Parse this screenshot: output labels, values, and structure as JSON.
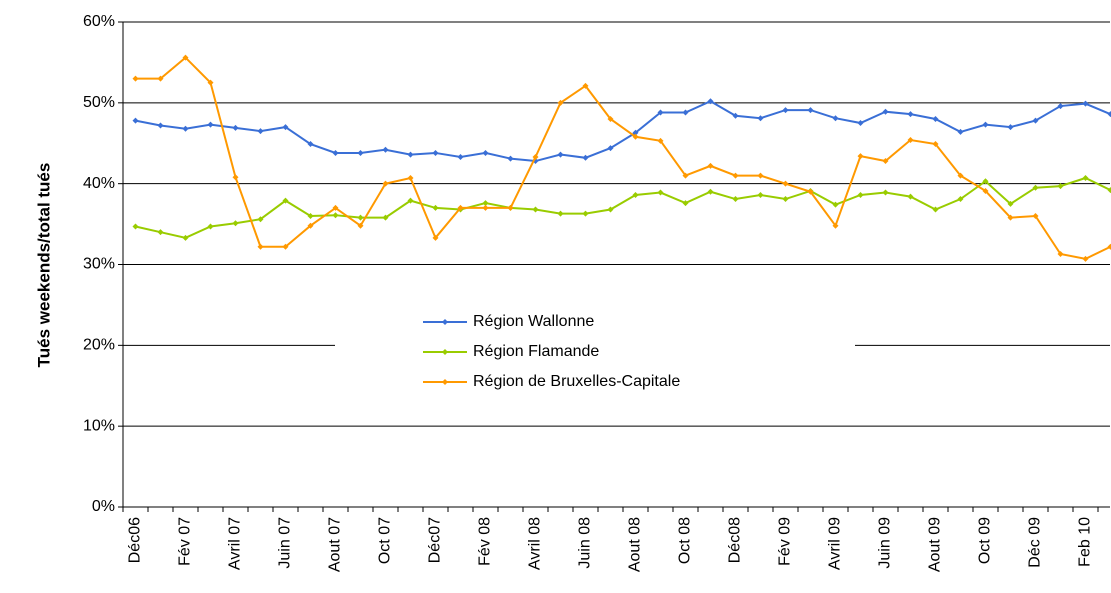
{
  "chart_data": {
    "type": "line",
    "y_label": "Tués weekends/total tués",
    "categories": [
      "Déc06",
      null,
      "Fév 07",
      null,
      "Avril 07",
      null,
      "Juin 07",
      null,
      "Aout 07",
      null,
      "Oct 07",
      null,
      "Déc07",
      null,
      "Fév 08",
      null,
      "Avril 08",
      null,
      "Juin 08",
      null,
      "Aout 08",
      null,
      "Oct 08",
      null,
      "Déc08",
      null,
      "Fév 09",
      null,
      "Avril 09",
      null,
      "Juin 09",
      null,
      "Aout 09",
      null,
      "Oct 09",
      null,
      "Déc 09",
      null,
      "Feb 10",
      null
    ],
    "series": [
      {
        "name": "Région Wallonne",
        "color": "#3a6fd6",
        "values": [
          47.8,
          47.2,
          46.8,
          47.3,
          46.9,
          46.5,
          47.0,
          44.9,
          43.8,
          43.8,
          44.2,
          43.6,
          43.8,
          43.3,
          43.8,
          43.1,
          42.8,
          43.6,
          43.2,
          44.4,
          46.3,
          48.8,
          48.8,
          50.2,
          48.4,
          48.1,
          49.1,
          49.1,
          48.1,
          47.5,
          48.9,
          48.6,
          48.0,
          46.4,
          47.3,
          47.0,
          47.8,
          49.6,
          49.9,
          48.6
        ]
      },
      {
        "name": "Région Flamande",
        "color": "#99cc00",
        "values": [
          34.7,
          34.0,
          33.3,
          34.7,
          35.1,
          35.6,
          37.9,
          36.0,
          36.1,
          35.8,
          35.8,
          37.9,
          37.0,
          36.8,
          37.6,
          37.0,
          36.8,
          36.3,
          36.3,
          36.8,
          38.6,
          38.9,
          37.6,
          39.0,
          38.1,
          38.6,
          38.1,
          39.1,
          37.4,
          38.6,
          38.9,
          38.4,
          36.8,
          38.1,
          40.3,
          37.5,
          39.5,
          39.7,
          40.7,
          39.2
        ]
      },
      {
        "name": "Région de Bruxelles-Capitale",
        "color": "#ff9900",
        "values": [
          53.0,
          53.0,
          55.6,
          52.5,
          40.8,
          32.2,
          32.2,
          34.8,
          37.0,
          34.8,
          40.0,
          40.7,
          33.3,
          37.0,
          37.0,
          37.0,
          43.3,
          50.0,
          52.1,
          48.0,
          45.8,
          45.3,
          41.0,
          42.2,
          41.0,
          41.0,
          40.0,
          39.0,
          34.8,
          43.4,
          42.8,
          45.4,
          44.9,
          41.0,
          39.1,
          35.8,
          36.0,
          31.3,
          30.7,
          32.2
        ]
      }
    ],
    "ylim": [
      0,
      60
    ],
    "yticks": [
      {
        "value": 0,
        "label": "0%"
      },
      {
        "value": 10,
        "label": "10%"
      },
      {
        "value": 20,
        "label": "20%"
      },
      {
        "value": 30,
        "label": "30%"
      },
      {
        "value": 40,
        "label": "40%"
      },
      {
        "value": 50,
        "label": "50%"
      },
      {
        "value": 60,
        "label": "60%"
      }
    ],
    "grid": true,
    "legend": "center"
  }
}
